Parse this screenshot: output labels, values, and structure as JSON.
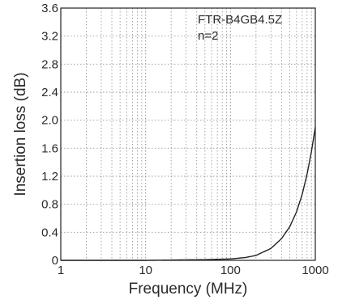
{
  "chart_data": {
    "type": "line",
    "xlabel": "Frequency (MHz)",
    "ylabel": "Insertion loss (dB)",
    "xscale": "log",
    "xlim": [
      1,
      1000
    ],
    "ylim": [
      0,
      3.6
    ],
    "x_ticks": [
      1,
      10,
      100,
      1000
    ],
    "x_tick_labels": [
      "1",
      "10",
      "100",
      "1000"
    ],
    "y_ticks": [
      0,
      0.4,
      0.8,
      1.2,
      1.6,
      2.0,
      2.4,
      2.8,
      3.2,
      3.6
    ],
    "y_tick_labels": [
      "0",
      "0.4",
      "0.8",
      "1.2",
      "1.6",
      "2.0",
      "2.4",
      "2.8",
      "3.2",
      "3.6"
    ],
    "grid": true,
    "annotations": [
      "FTR-B4GB4.5Z",
      "n=2"
    ],
    "series": [
      {
        "x": [
          1,
          10,
          50,
          100,
          150,
          200,
          300,
          400,
          500,
          600,
          700,
          800,
          900,
          1000
        ],
        "y": [
          0.0,
          0.0,
          0.01,
          0.02,
          0.04,
          0.07,
          0.17,
          0.31,
          0.48,
          0.69,
          0.94,
          1.23,
          1.55,
          1.9
        ]
      }
    ]
  }
}
